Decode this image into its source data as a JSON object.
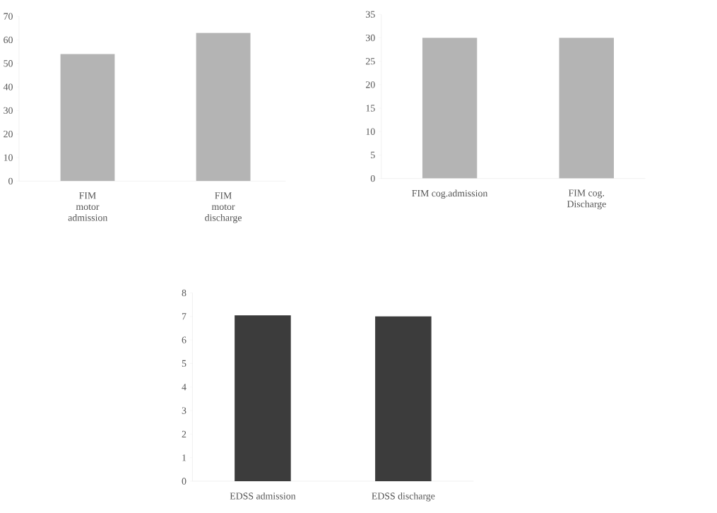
{
  "chart_data": [
    {
      "type": "bar",
      "categories": [
        "FIM motor admission",
        "FIM motor discharge"
      ],
      "values": [
        54,
        63
      ],
      "color": "#b4b4b4",
      "ylim": [
        0,
        70
      ],
      "yticks": [
        0,
        10,
        20,
        30,
        40,
        50,
        60,
        70
      ]
    },
    {
      "type": "bar",
      "categories": [
        "FIM cog.admission",
        "FIM cog. Discharge"
      ],
      "values": [
        30,
        30
      ],
      "color": "#b4b4b4",
      "ylim": [
        0,
        35
      ],
      "yticks": [
        0,
        5,
        10,
        15,
        20,
        25,
        30,
        35
      ]
    },
    {
      "type": "bar",
      "categories": [
        "EDSS admission",
        "EDSS discharge"
      ],
      "values": [
        7.05,
        7.0
      ],
      "color": "#3c3c3c",
      "ylim": [
        0,
        8
      ],
      "yticks": [
        0,
        1,
        2,
        3,
        4,
        5,
        6,
        7,
        8
      ]
    }
  ]
}
